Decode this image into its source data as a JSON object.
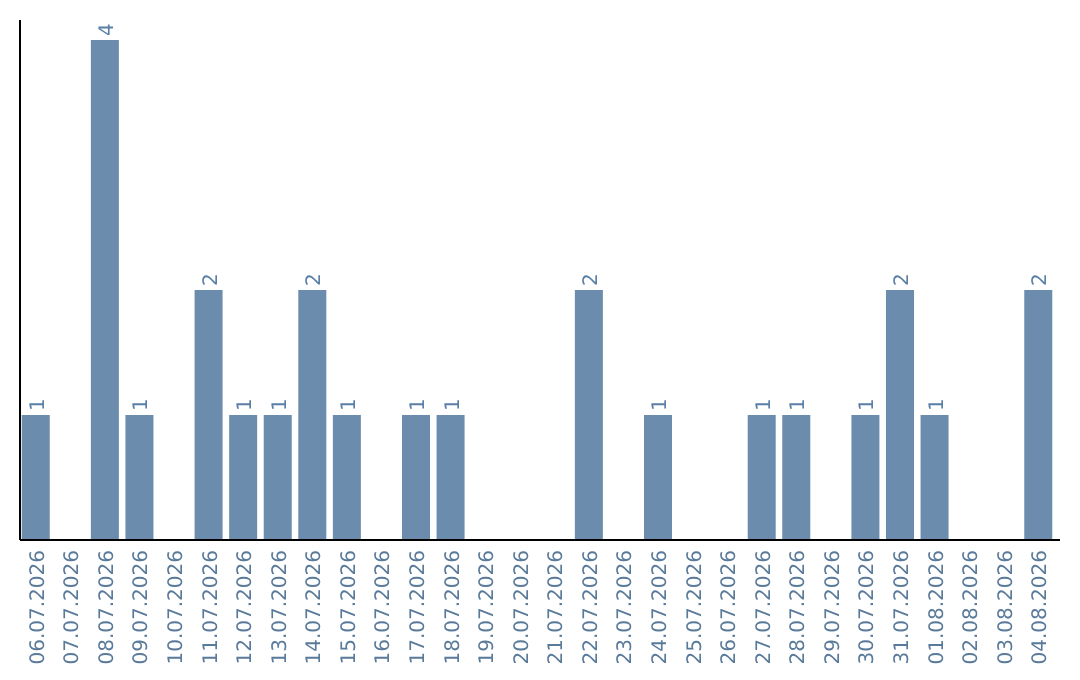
{
  "chart_data": {
    "type": "bar",
    "categories": [
      "06.07.2026",
      "07.07.2026",
      "08.07.2026",
      "09.07.2026",
      "10.07.2026",
      "11.07.2026",
      "12.07.2026",
      "13.07.2026",
      "14.07.2026",
      "15.07.2026",
      "16.07.2026",
      "17.07.2026",
      "18.07.2026",
      "19.07.2026",
      "20.07.2026",
      "21.07.2026",
      "22.07.2026",
      "23.07.2026",
      "24.07.2026",
      "25.07.2026",
      "26.07.2026",
      "27.07.2026",
      "28.07.2026",
      "29.07.2026",
      "30.07.2026",
      "31.07.2026",
      "01.08.2026",
      "02.08.2026",
      "03.08.2026",
      "04.08.2026"
    ],
    "values": [
      1,
      null,
      4,
      1,
      null,
      2,
      1,
      1,
      2,
      1,
      null,
      1,
      1,
      null,
      null,
      null,
      2,
      null,
      1,
      null,
      null,
      1,
      1,
      null,
      1,
      2,
      1,
      null,
      null,
      2
    ],
    "color": "#6b8cac",
    "data_labels": true,
    "tick_labels": "x",
    "grid": false
  }
}
